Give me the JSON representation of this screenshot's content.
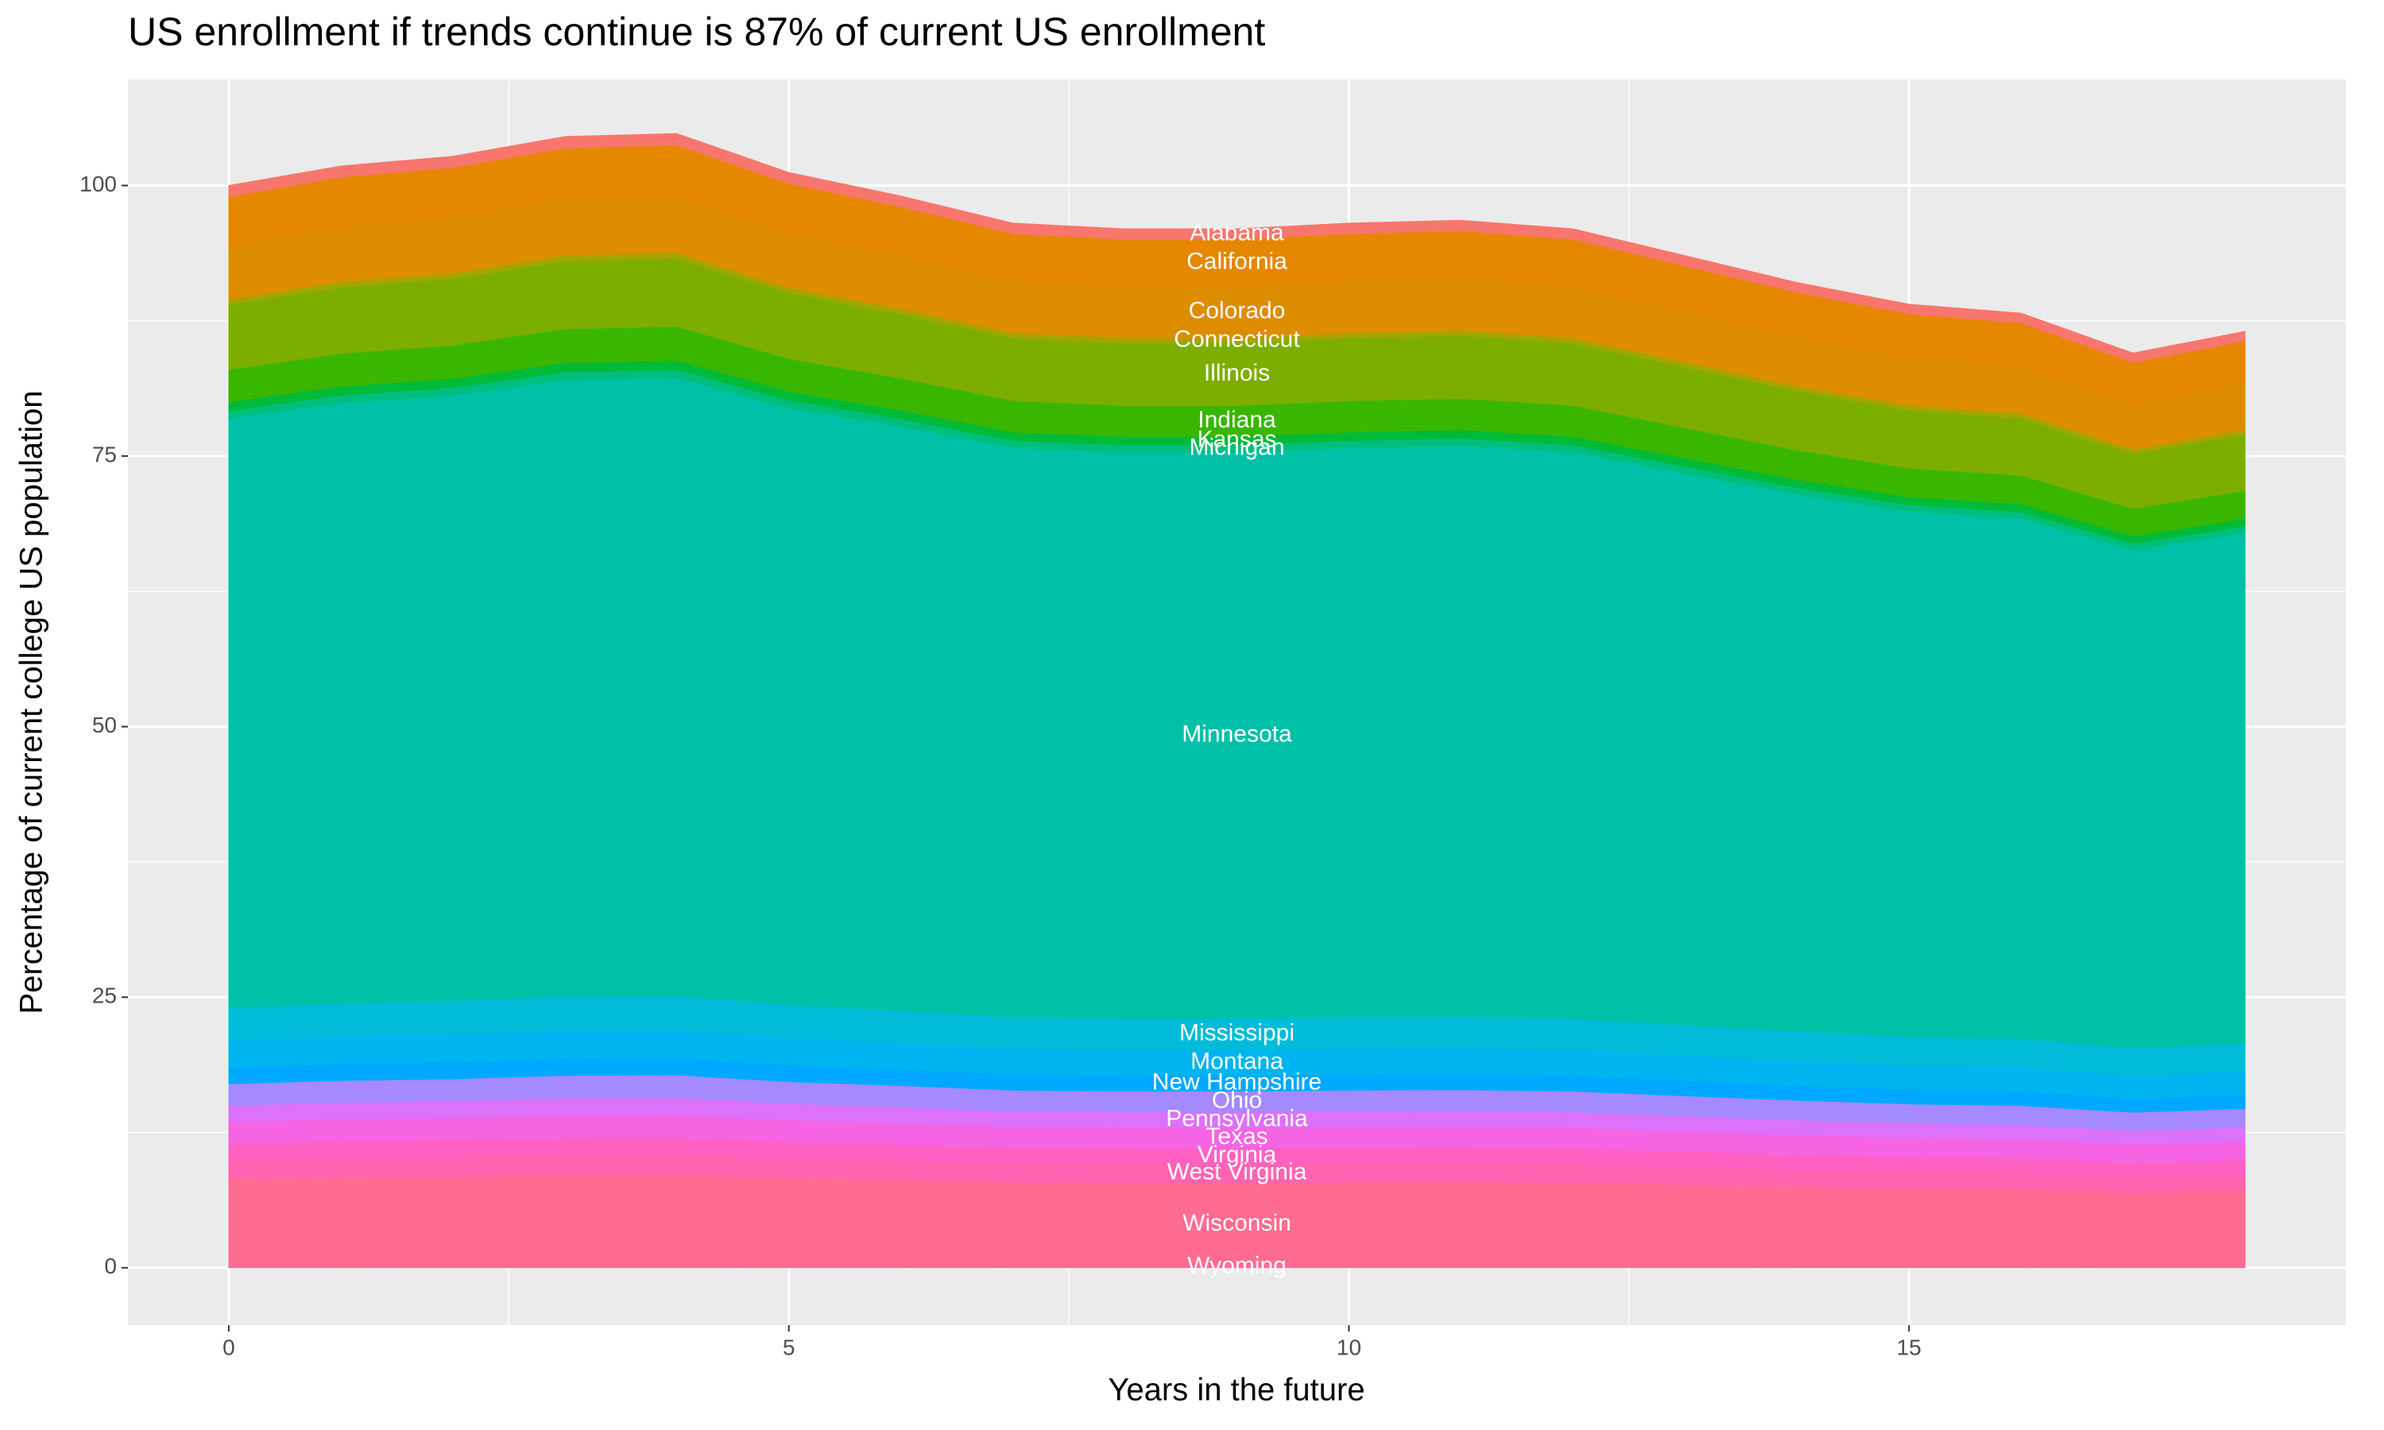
{
  "chart_data": {
    "type": "area",
    "title": "US enrollment if trends continue is 87% of current US enrollment",
    "xlabel": "Years in the future",
    "ylabel": "Percentage of current college US population",
    "x": [
      0,
      1,
      2,
      3,
      4,
      5,
      6,
      7,
      8,
      9,
      10,
      11,
      12,
      13,
      14,
      15,
      16,
      17,
      18
    ],
    "xlim": [
      -0.9,
      18.9
    ],
    "xticks": [
      0,
      5,
      10,
      15
    ],
    "ylim": [
      -5.3,
      109.8
    ],
    "yticks": [
      0,
      25,
      50,
      75,
      100
    ],
    "grid": true,
    "stacked": true,
    "series": [
      {
        "name": "Wyoming",
        "color": "#FF6A98",
        "values": [
          0.2,
          0.2,
          0.21,
          0.21,
          0.21,
          0.2,
          0.2,
          0.19,
          0.19,
          0.19,
          0.19,
          0.19,
          0.19,
          0.19,
          0.18,
          0.18,
          0.18,
          0.17,
          0.17
        ]
      },
      {
        "name": "Wisconsin",
        "color": "#FF6C91",
        "values": [
          8,
          8.14,
          8.22,
          8.36,
          8.38,
          8.1,
          7.92,
          7.72,
          7.68,
          7.68,
          7.72,
          7.74,
          7.68,
          7.48,
          7.28,
          7.12,
          7.06,
          6.76,
          6.92
        ]
      },
      {
        "name": "West Virginia",
        "color": "#FF64B0",
        "values": [
          1.8,
          1.83,
          1.85,
          1.88,
          1.89,
          1.82,
          1.78,
          1.74,
          1.73,
          1.73,
          1.74,
          1.74,
          1.73,
          1.68,
          1.64,
          1.6,
          1.59,
          1.52,
          1.56
        ]
      },
      {
        "name": "Virginia",
        "color": "#FF61C3",
        "values": [
          1.5,
          1.53,
          1.54,
          1.57,
          1.57,
          1.52,
          1.49,
          1.45,
          1.44,
          1.44,
          1.45,
          1.45,
          1.44,
          1.4,
          1.37,
          1.34,
          1.32,
          1.27,
          1.3
        ]
      },
      {
        "name": "Texas",
        "color": "#F564E3",
        "values": [
          2,
          2.04,
          2.05,
          2.09,
          2.1,
          2.02,
          1.98,
          1.93,
          1.92,
          1.92,
          1.93,
          1.94,
          1.92,
          1.87,
          1.82,
          1.78,
          1.76,
          1.69,
          1.73
        ]
      },
      {
        "name": "Pennsylvania",
        "color": "#DC71FA",
        "values": [
          1.5,
          1.53,
          1.54,
          1.57,
          1.57,
          1.52,
          1.49,
          1.45,
          1.44,
          1.44,
          1.45,
          1.45,
          1.44,
          1.4,
          1.37,
          1.34,
          1.32,
          1.27,
          1.3
        ]
      },
      {
        "name": "Ohio",
        "color": "#A58AFF",
        "values": [
          2,
          2.04,
          2.05,
          2.09,
          2.1,
          2.02,
          1.98,
          1.93,
          1.92,
          1.92,
          1.93,
          1.94,
          1.92,
          1.87,
          1.82,
          1.78,
          1.76,
          1.69,
          1.73
        ]
      },
      {
        "name": "New Hampshire",
        "color": "#00A9FF",
        "values": [
          1.5,
          1.53,
          1.54,
          1.57,
          1.57,
          1.52,
          1.49,
          1.45,
          1.44,
          1.44,
          1.45,
          1.45,
          1.44,
          1.4,
          1.37,
          1.34,
          1.32,
          1.27,
          1.3
        ]
      },
      {
        "name": "Montana",
        "color": "#00B4EF",
        "values": [
          2.5,
          2.55,
          2.57,
          2.61,
          2.62,
          2.53,
          2.48,
          2.41,
          2.4,
          2.4,
          2.41,
          2.42,
          2.4,
          2.34,
          2.28,
          2.23,
          2.21,
          2.11,
          2.16
        ]
      },
      {
        "name": "Mississippi",
        "color": "#00BCD8",
        "values": [
          3,
          3.05,
          3.08,
          3.14,
          3.14,
          3.04,
          2.97,
          2.9,
          2.88,
          2.88,
          2.9,
          2.9,
          2.88,
          2.81,
          2.73,
          2.67,
          2.65,
          2.54,
          2.6
        ]
      },
      {
        "name": "Minnesota",
        "color": "#00C1A7",
        "values": [
          54.5,
          55.48,
          55.97,
          56.95,
          57.12,
          55.15,
          53.96,
          52.59,
          52.32,
          52.32,
          52.59,
          52.76,
          52.32,
          50.96,
          49.6,
          48.51,
          48.07,
          46.05,
          47.14
        ]
      },
      {
        "name": "Michigan",
        "color": "#00BF7D",
        "values": [
          0.7,
          0.71,
          0.72,
          0.73,
          0.73,
          0.71,
          0.69,
          0.68,
          0.67,
          0.67,
          0.68,
          0.68,
          0.67,
          0.65,
          0.64,
          0.62,
          0.62,
          0.59,
          0.61
        ]
      },
      {
        "name": "Kansas",
        "color": "#00BA38",
        "values": [
          0.8,
          0.81,
          0.82,
          0.84,
          0.84,
          0.81,
          0.79,
          0.77,
          0.77,
          0.77,
          0.77,
          0.77,
          0.77,
          0.75,
          0.73,
          0.71,
          0.71,
          0.68,
          0.69
        ]
      },
      {
        "name": "Indiana",
        "color": "#39B600",
        "values": [
          3,
          3.05,
          3.08,
          3.14,
          3.14,
          3.04,
          2.97,
          2.9,
          2.88,
          2.88,
          2.9,
          2.9,
          2.88,
          2.81,
          2.73,
          2.67,
          2.65,
          2.54,
          2.6
        ]
      },
      {
        "name": "Illinois",
        "color": "#7CAE00",
        "values": [
          6,
          6.11,
          6.16,
          6.27,
          6.29,
          6.07,
          5.94,
          5.79,
          5.76,
          5.76,
          5.79,
          5.81,
          5.76,
          5.61,
          5.46,
          5.34,
          5.29,
          5.07,
          5.19
        ]
      },
      {
        "name": "Connecticut",
        "color": "#A3A500",
        "values": [
          0.5,
          0.51,
          0.51,
          0.52,
          0.52,
          0.51,
          0.5,
          0.48,
          0.48,
          0.48,
          0.48,
          0.48,
          0.48,
          0.47,
          0.46,
          0.45,
          0.44,
          0.42,
          0.43
        ]
      },
      {
        "name": "Colorado",
        "color": "#DE8C00",
        "values": [
          5,
          5.09,
          5.14,
          5.23,
          5.24,
          5.06,
          4.95,
          4.83,
          4.8,
          4.8,
          4.83,
          4.84,
          4.8,
          4.68,
          4.55,
          4.45,
          4.41,
          4.23,
          4.33
        ]
      },
      {
        "name": "California",
        "color": "#E58700",
        "values": [
          4.5,
          4.58,
          4.62,
          4.7,
          4.72,
          4.55,
          4.46,
          4.34,
          4.32,
          4.32,
          4.34,
          4.36,
          4.32,
          4.21,
          4.1,
          4.01,
          3.97,
          3.8,
          3.89
        ]
      },
      {
        "name": "Alabama",
        "color": "#F8766D",
        "values": [
          1,
          1.02,
          1.03,
          1.05,
          1.05,
          1.01,
          0.99,
          0.97,
          0.96,
          0.96,
          0.97,
          0.97,
          0.96,
          0.94,
          0.91,
          0.89,
          0.88,
          0.85,
          0.87
        ]
      }
    ]
  }
}
